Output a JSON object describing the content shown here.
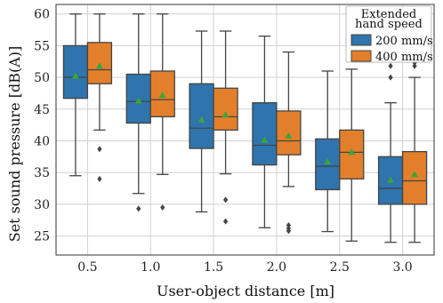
{
  "chart_data": {
    "type": "box",
    "xlabel": "User-object distance [m]",
    "ylabel": "Set sound pressure [dB(A)]",
    "categories": [
      "0.5",
      "1.0",
      "1.5",
      "2.0",
      "2.5",
      "3.0"
    ],
    "ylim": [
      22,
      61.5
    ],
    "yticks": [
      25,
      30,
      35,
      40,
      45,
      50,
      55,
      60
    ],
    "grid": true,
    "legend": {
      "title": "Extended\nhand speed",
      "placement": "top-right"
    },
    "series": [
      {
        "name": "200 mm/s",
        "color": "#2f74ad",
        "boxes": [
          {
            "whislo": 34.5,
            "q1": 46.7,
            "med": 50.0,
            "q3": 55.0,
            "whishi": 60.0,
            "mean": 50.2,
            "fliers": []
          },
          {
            "whislo": 31.7,
            "q1": 42.8,
            "med": 46.2,
            "q3": 50.5,
            "whishi": 60.0,
            "mean": 46.3,
            "fliers": [
              29.3
            ]
          },
          {
            "whislo": 28.8,
            "q1": 38.8,
            "med": 42.0,
            "q3": 49.0,
            "whishi": 57.3,
            "mean": 43.3,
            "fliers": []
          },
          {
            "whislo": 26.3,
            "q1": 36.2,
            "med": 39.3,
            "q3": 46.0,
            "whishi": 56.5,
            "mean": 40.1,
            "fliers": []
          },
          {
            "whislo": 25.7,
            "q1": 32.3,
            "med": 36.0,
            "q3": 40.3,
            "whishi": 51.0,
            "mean": 36.7,
            "fliers": []
          },
          {
            "whislo": 24.0,
            "q1": 30.0,
            "med": 32.5,
            "q3": 37.5,
            "whishi": 46.0,
            "mean": 33.8,
            "fliers": [
              50.0,
              51.8
            ]
          }
        ]
      },
      {
        "name": "400 mm/s",
        "color": "#e37f2b",
        "boxes": [
          {
            "whislo": 41.7,
            "q1": 49.0,
            "med": 51.2,
            "q3": 55.5,
            "whishi": 60.0,
            "mean": 51.8,
            "fliers": [
              38.7,
              34.0
            ]
          },
          {
            "whislo": 34.7,
            "q1": 43.8,
            "med": 46.5,
            "q3": 51.0,
            "whishi": 60.0,
            "mean": 47.2,
            "fliers": [
              29.5
            ]
          },
          {
            "whislo": 34.8,
            "q1": 41.7,
            "med": 43.8,
            "q3": 48.3,
            "whishi": 57.3,
            "mean": 44.1,
            "fliers": [
              30.7,
              27.3
            ]
          },
          {
            "whislo": 32.8,
            "q1": 37.8,
            "med": 40.0,
            "q3": 44.7,
            "whishi": 54.0,
            "mean": 40.8,
            "fliers": [
              26.7,
              26.2,
              25.8
            ]
          },
          {
            "whislo": 24.2,
            "q1": 34.0,
            "med": 38.2,
            "q3": 41.7,
            "whishi": 51.3,
            "mean": 38.2,
            "fliers": []
          },
          {
            "whislo": 24.0,
            "q1": 30.0,
            "med": 33.7,
            "q3": 38.3,
            "whishi": 50.0,
            "mean": 34.7,
            "fliers": [
              51.8,
              52.3
            ]
          }
        ]
      }
    ]
  }
}
